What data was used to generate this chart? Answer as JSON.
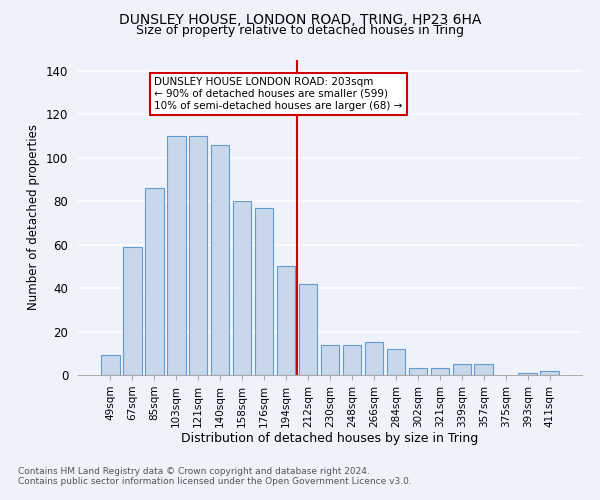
{
  "title": "DUNSLEY HOUSE, LONDON ROAD, TRING, HP23 6HA",
  "subtitle": "Size of property relative to detached houses in Tring",
  "xlabel": "Distribution of detached houses by size in Tring",
  "ylabel": "Number of detached properties",
  "footnote1": "Contains HM Land Registry data © Crown copyright and database right 2024.",
  "footnote2": "Contains public sector information licensed under the Open Government Licence v3.0.",
  "categories": [
    "49sqm",
    "67sqm",
    "85sqm",
    "103sqm",
    "121sqm",
    "140sqm",
    "158sqm",
    "176sqm",
    "194sqm",
    "212sqm",
    "230sqm",
    "248sqm",
    "266sqm",
    "284sqm",
    "302sqm",
    "321sqm",
    "339sqm",
    "357sqm",
    "375sqm",
    "393sqm",
    "411sqm"
  ],
  "values": [
    9,
    59,
    86,
    110,
    110,
    106,
    80,
    77,
    50,
    42,
    14,
    14,
    15,
    12,
    3,
    3,
    5,
    5,
    0,
    1,
    2
  ],
  "bar_color": "#c8d8ea",
  "bar_edge_color": "#6699cc",
  "vline_color": "#cc0000",
  "annotation_title": "DUNSLEY HOUSE LONDON ROAD: 203sqm",
  "annotation_line1": "← 90% of detached houses are smaller (599)",
  "annotation_line2": "10% of semi-detached houses are larger (68) →",
  "annotation_box_color": "#cc0000",
  "ylim": [
    0,
    145
  ],
  "yticks": [
    0,
    20,
    40,
    60,
    80,
    100,
    120,
    140
  ],
  "background_color": "#eef2fb",
  "grid_color": "#ffffff"
}
